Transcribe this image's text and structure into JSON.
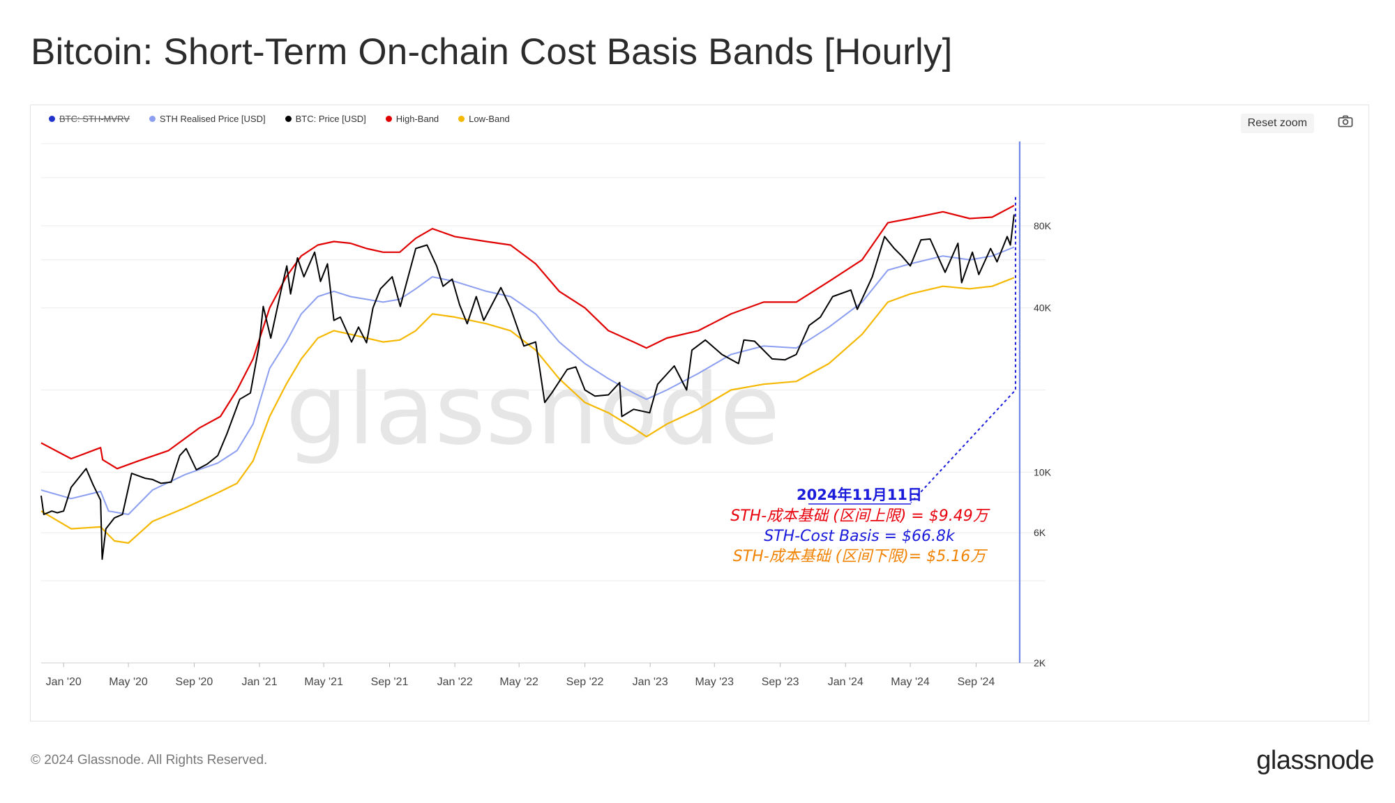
{
  "title": "Bitcoin: Short-Term On-chain Cost Basis Bands [Hourly]",
  "legend": [
    {
      "label": "BTC: STH-MVRV",
      "color": "#2233cc",
      "hidden": true
    },
    {
      "label": "STH Realised Price [USD]",
      "color": "#8c9ef0",
      "hidden": false
    },
    {
      "label": "BTC: Price [USD]",
      "color": "#000000",
      "hidden": false
    },
    {
      "label": "High-Band",
      "color": "#e00000",
      "hidden": false
    },
    {
      "label": "Low-Band",
      "color": "#f5b800",
      "hidden": false
    }
  ],
  "toolbar": {
    "reset_zoom_label": "Reset zoom",
    "camera_icon": "camera-icon"
  },
  "watermark": "glassnode",
  "annotation": {
    "date": "2024年11月11日",
    "high": "STH-成本基础 (区间上限) = $9.49万",
    "mid": "STH-Cost Basis = $66.8k",
    "low": "STH-成本基础  (区间下限)= $5.16万",
    "colors": {
      "date": "#1a1adb",
      "high": "#e8000c",
      "mid": "#1a1adb",
      "low": "#f08200"
    }
  },
  "footer": {
    "copyright": "© 2024 Glassnode. All Rights Reserved.",
    "logo": "glassnode"
  },
  "chart_data": {
    "type": "line",
    "x_scale": "time",
    "y_scale": "log",
    "x_range": [
      "2019-11-20",
      "2024-11-15"
    ],
    "y_range": [
      2000,
      160000
    ],
    "x_ticks": [
      {
        "date": "2020-01-01",
        "label": "Jan '20"
      },
      {
        "date": "2020-05-01",
        "label": "May '20"
      },
      {
        "date": "2020-09-01",
        "label": "Sep '20"
      },
      {
        "date": "2021-01-01",
        "label": "Jan '21"
      },
      {
        "date": "2021-05-01",
        "label": "May '21"
      },
      {
        "date": "2021-09-01",
        "label": "Sep '21"
      },
      {
        "date": "2022-01-01",
        "label": "Jan '22"
      },
      {
        "date": "2022-05-01",
        "label": "May '22"
      },
      {
        "date": "2022-09-01",
        "label": "Sep '22"
      },
      {
        "date": "2023-01-01",
        "label": "Jan '23"
      },
      {
        "date": "2023-05-01",
        "label": "May '23"
      },
      {
        "date": "2023-09-01",
        "label": "Sep '23"
      },
      {
        "date": "2024-01-01",
        "label": "Jan '24"
      },
      {
        "date": "2024-05-01",
        "label": "May '24"
      },
      {
        "date": "2024-09-01",
        "label": "Sep '24"
      }
    ],
    "y_ticks": [
      {
        "value": 2000,
        "label": "2K"
      },
      {
        "value": 6000,
        "label": "6K"
      },
      {
        "value": 10000,
        "label": "10K"
      },
      {
        "value": 40000,
        "label": "40K"
      },
      {
        "value": 80000,
        "label": "80K"
      }
    ],
    "grid": true,
    "legend_position": "top-left",
    "series": [
      {
        "name": "High-Band",
        "color": "#e00000",
        "points": [
          [
            "2019-11-20",
            12800
          ],
          [
            "2020-01-15",
            11200
          ],
          [
            "2020-03-10",
            12300
          ],
          [
            "2020-03-14",
            11100
          ],
          [
            "2020-04-10",
            10300
          ],
          [
            "2020-05-20",
            11000
          ],
          [
            "2020-07-15",
            12000
          ],
          [
            "2020-09-10",
            14500
          ],
          [
            "2020-10-20",
            16000
          ],
          [
            "2020-11-20",
            20000
          ],
          [
            "2020-12-20",
            26000
          ],
          [
            "2021-01-20",
            40000
          ],
          [
            "2021-02-20",
            52000
          ],
          [
            "2021-03-20",
            62000
          ],
          [
            "2021-04-20",
            68000
          ],
          [
            "2021-05-20",
            70000
          ],
          [
            "2021-06-20",
            69000
          ],
          [
            "2021-07-20",
            66000
          ],
          [
            "2021-08-20",
            64000
          ],
          [
            "2021-09-20",
            64000
          ],
          [
            "2021-10-20",
            72000
          ],
          [
            "2021-11-20",
            78000
          ],
          [
            "2022-01-01",
            73000
          ],
          [
            "2022-03-01",
            70000
          ],
          [
            "2022-04-15",
            68000
          ],
          [
            "2022-06-01",
            58000
          ],
          [
            "2022-07-15",
            46000
          ],
          [
            "2022-09-01",
            40000
          ],
          [
            "2022-10-15",
            33000
          ],
          [
            "2022-12-01",
            30000
          ],
          [
            "2022-12-25",
            28500
          ],
          [
            "2023-02-01",
            31000
          ],
          [
            "2023-04-01",
            33000
          ],
          [
            "2023-06-01",
            38000
          ],
          [
            "2023-08-01",
            42000
          ],
          [
            "2023-10-01",
            42000
          ],
          [
            "2023-12-01",
            50000
          ],
          [
            "2024-02-01",
            60000
          ],
          [
            "2024-03-20",
            82000
          ],
          [
            "2024-05-01",
            85000
          ],
          [
            "2024-07-01",
            90000
          ],
          [
            "2024-08-20",
            85000
          ],
          [
            "2024-10-01",
            86000
          ],
          [
            "2024-11-11",
            94900
          ]
        ]
      },
      {
        "name": "STH Realised Price [USD]",
        "color": "#8c9ef0",
        "points": [
          [
            "2019-11-20",
            8600
          ],
          [
            "2020-01-15",
            8000
          ],
          [
            "2020-03-10",
            8500
          ],
          [
            "2020-03-25",
            7200
          ],
          [
            "2020-05-01",
            7000
          ],
          [
            "2020-06-15",
            8600
          ],
          [
            "2020-08-15",
            9800
          ],
          [
            "2020-10-15",
            10800
          ],
          [
            "2020-11-20",
            12000
          ],
          [
            "2020-12-20",
            15000
          ],
          [
            "2021-01-20",
            24000
          ],
          [
            "2021-02-20",
            30000
          ],
          [
            "2021-03-20",
            38000
          ],
          [
            "2021-04-20",
            44000
          ],
          [
            "2021-05-20",
            46000
          ],
          [
            "2021-06-20",
            44000
          ],
          [
            "2021-07-20",
            43000
          ],
          [
            "2021-08-20",
            42000
          ],
          [
            "2021-09-20",
            43000
          ],
          [
            "2021-10-20",
            47000
          ],
          [
            "2021-11-20",
            52000
          ],
          [
            "2022-01-01",
            50000
          ],
          [
            "2022-03-01",
            46000
          ],
          [
            "2022-04-15",
            44000
          ],
          [
            "2022-06-01",
            38000
          ],
          [
            "2022-07-15",
            30000
          ],
          [
            "2022-09-01",
            25000
          ],
          [
            "2022-10-15",
            22000
          ],
          [
            "2022-12-01",
            19500
          ],
          [
            "2022-12-25",
            18500
          ],
          [
            "2023-02-01",
            20000
          ],
          [
            "2023-04-01",
            23000
          ],
          [
            "2023-06-01",
            27000
          ],
          [
            "2023-08-01",
            29000
          ],
          [
            "2023-10-01",
            28500
          ],
          [
            "2023-12-01",
            34000
          ],
          [
            "2024-02-01",
            42000
          ],
          [
            "2024-03-20",
            55000
          ],
          [
            "2024-05-01",
            58000
          ],
          [
            "2024-07-01",
            62000
          ],
          [
            "2024-08-20",
            60000
          ],
          [
            "2024-10-01",
            62000
          ],
          [
            "2024-11-11",
            66800
          ]
        ]
      },
      {
        "name": "Low-Band",
        "color": "#f5b800",
        "points": [
          [
            "2019-11-20",
            7200
          ],
          [
            "2020-01-15",
            6200
          ],
          [
            "2020-03-10",
            6300
          ],
          [
            "2020-04-05",
            5600
          ],
          [
            "2020-05-01",
            5500
          ],
          [
            "2020-06-15",
            6600
          ],
          [
            "2020-08-15",
            7400
          ],
          [
            "2020-10-15",
            8400
          ],
          [
            "2020-11-20",
            9100
          ],
          [
            "2020-12-20",
            11000
          ],
          [
            "2021-01-20",
            16000
          ],
          [
            "2021-02-20",
            21000
          ],
          [
            "2021-03-20",
            26000
          ],
          [
            "2021-04-20",
            31000
          ],
          [
            "2021-05-20",
            33000
          ],
          [
            "2021-06-20",
            32000
          ],
          [
            "2021-07-20",
            31000
          ],
          [
            "2021-08-20",
            30000
          ],
          [
            "2021-09-20",
            30500
          ],
          [
            "2021-10-20",
            33000
          ],
          [
            "2021-11-20",
            38000
          ],
          [
            "2022-01-01",
            37000
          ],
          [
            "2022-03-01",
            35000
          ],
          [
            "2022-04-15",
            33000
          ],
          [
            "2022-06-01",
            28000
          ],
          [
            "2022-07-15",
            22000
          ],
          [
            "2022-09-01",
            18000
          ],
          [
            "2022-10-15",
            16500
          ],
          [
            "2022-12-01",
            14500
          ],
          [
            "2022-12-25",
            13500
          ],
          [
            "2023-02-01",
            15000
          ],
          [
            "2023-04-01",
            17000
          ],
          [
            "2023-06-01",
            20000
          ],
          [
            "2023-08-01",
            21000
          ],
          [
            "2023-10-01",
            21500
          ],
          [
            "2023-12-01",
            25000
          ],
          [
            "2024-02-01",
            32000
          ],
          [
            "2024-03-20",
            42000
          ],
          [
            "2024-05-01",
            45000
          ],
          [
            "2024-07-01",
            48000
          ],
          [
            "2024-08-20",
            47000
          ],
          [
            "2024-10-01",
            48000
          ],
          [
            "2024-11-11",
            51600
          ]
        ]
      },
      {
        "name": "BTC: Price [USD]",
        "color": "#000000",
        "points": [
          [
            "2019-11-20",
            8200
          ],
          [
            "2019-11-25",
            7000
          ],
          [
            "2019-12-10",
            7200
          ],
          [
            "2019-12-20",
            7100
          ],
          [
            "2020-01-01",
            7200
          ],
          [
            "2020-01-15",
            8800
          ],
          [
            "2020-02-12",
            10300
          ],
          [
            "2020-02-25",
            9000
          ],
          [
            "2020-03-10",
            7900
          ],
          [
            "2020-03-13",
            4800
          ],
          [
            "2020-03-20",
            6200
          ],
          [
            "2020-04-05",
            6800
          ],
          [
            "2020-04-20",
            7000
          ],
          [
            "2020-05-07",
            9900
          ],
          [
            "2020-06-01",
            9500
          ],
          [
            "2020-06-15",
            9400
          ],
          [
            "2020-07-01",
            9100
          ],
          [
            "2020-07-20",
            9200
          ],
          [
            "2020-08-05",
            11500
          ],
          [
            "2020-08-17",
            12200
          ],
          [
            "2020-09-05",
            10200
          ],
          [
            "2020-09-25",
            10700
          ],
          [
            "2020-10-15",
            11500
          ],
          [
            "2020-11-01",
            13800
          ],
          [
            "2020-11-25",
            18500
          ],
          [
            "2020-12-15",
            19500
          ],
          [
            "2020-12-31",
            29000
          ],
          [
            "2021-01-08",
            40500
          ],
          [
            "2021-01-22",
            31000
          ],
          [
            "2021-02-10",
            46000
          ],
          [
            "2021-02-21",
            57000
          ],
          [
            "2021-02-28",
            45000
          ],
          [
            "2021-03-13",
            61000
          ],
          [
            "2021-03-25",
            52000
          ],
          [
            "2021-04-14",
            64000
          ],
          [
            "2021-04-25",
            50000
          ],
          [
            "2021-05-08",
            58000
          ],
          [
            "2021-05-20",
            36000
          ],
          [
            "2021-06-01",
            37000
          ],
          [
            "2021-06-22",
            30000
          ],
          [
            "2021-07-05",
            34000
          ],
          [
            "2021-07-20",
            29800
          ],
          [
            "2021-08-01",
            40000
          ],
          [
            "2021-08-15",
            47000
          ],
          [
            "2021-09-06",
            52000
          ],
          [
            "2021-09-21",
            40500
          ],
          [
            "2021-10-01",
            48000
          ],
          [
            "2021-10-20",
            66000
          ],
          [
            "2021-11-10",
            68000
          ],
          [
            "2021-11-28",
            57000
          ],
          [
            "2021-12-10",
            48000
          ],
          [
            "2021-12-27",
            51000
          ],
          [
            "2022-01-10",
            41000
          ],
          [
            "2022-01-24",
            35000
          ],
          [
            "2022-02-10",
            44000
          ],
          [
            "2022-02-24",
            36000
          ],
          [
            "2022-03-28",
            47500
          ],
          [
            "2022-04-15",
            40000
          ],
          [
            "2022-05-10",
            29000
          ],
          [
            "2022-06-01",
            30000
          ],
          [
            "2022-06-18",
            18000
          ],
          [
            "2022-07-01",
            19500
          ],
          [
            "2022-07-30",
            23800
          ],
          [
            "2022-08-15",
            24300
          ],
          [
            "2022-09-01",
            20000
          ],
          [
            "2022-09-20",
            19000
          ],
          [
            "2022-10-15",
            19200
          ],
          [
            "2022-11-05",
            21300
          ],
          [
            "2022-11-09",
            16000
          ],
          [
            "2022-12-01",
            17000
          ],
          [
            "2022-12-31",
            16500
          ],
          [
            "2023-01-15",
            21000
          ],
          [
            "2023-02-15",
            24500
          ],
          [
            "2023-03-10",
            20000
          ],
          [
            "2023-03-20",
            28000
          ],
          [
            "2023-04-14",
            30500
          ],
          [
            "2023-05-15",
            27000
          ],
          [
            "2023-06-15",
            25000
          ],
          [
            "2023-06-25",
            30500
          ],
          [
            "2023-07-15",
            30200
          ],
          [
            "2023-08-17",
            26000
          ],
          [
            "2023-09-10",
            25800
          ],
          [
            "2023-10-01",
            27000
          ],
          [
            "2023-10-25",
            34500
          ],
          [
            "2023-11-15",
            37000
          ],
          [
            "2023-12-08",
            44000
          ],
          [
            "2024-01-11",
            46500
          ],
          [
            "2024-01-23",
            39500
          ],
          [
            "2024-02-20",
            52000
          ],
          [
            "2024-03-14",
            73000
          ],
          [
            "2024-04-01",
            66000
          ],
          [
            "2024-04-15",
            62000
          ],
          [
            "2024-05-01",
            57000
          ],
          [
            "2024-05-21",
            71000
          ],
          [
            "2024-06-07",
            71500
          ],
          [
            "2024-07-05",
            54000
          ],
          [
            "2024-07-29",
            69000
          ],
          [
            "2024-08-05",
            49500
          ],
          [
            "2024-08-25",
            64000
          ],
          [
            "2024-09-06",
            53000
          ],
          [
            "2024-09-28",
            66000
          ],
          [
            "2024-10-10",
            59000
          ],
          [
            "2024-10-29",
            73000
          ],
          [
            "2024-11-04",
            68000
          ],
          [
            "2024-11-11",
            88000
          ]
        ]
      }
    ]
  }
}
